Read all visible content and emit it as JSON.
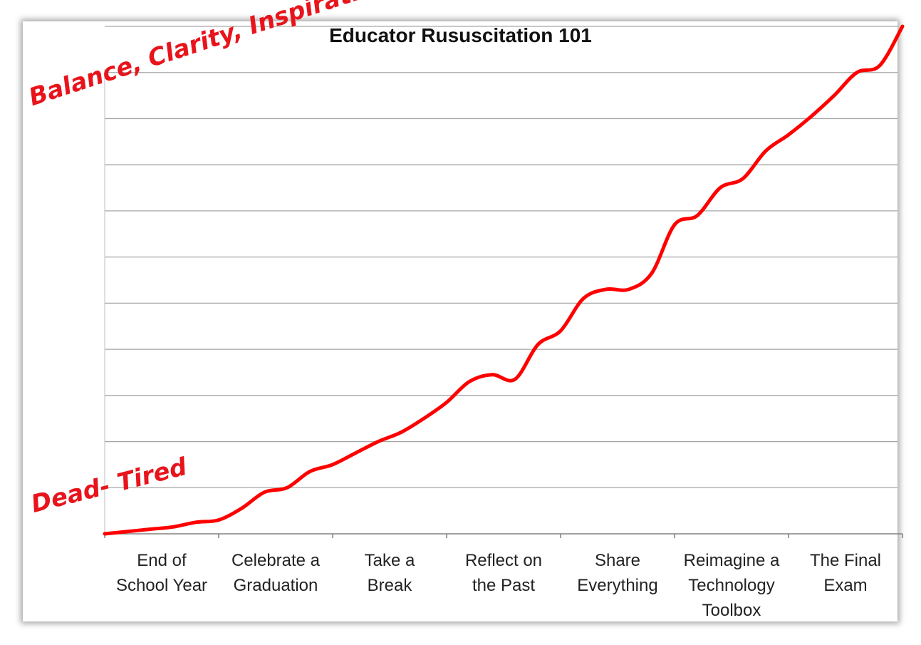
{
  "chart_data": {
    "type": "line",
    "title": "Educator Rususcitation 101",
    "categories": [
      "End of\nSchool Year",
      "Celebrate a\nGraduation",
      "Take a\nBreak",
      "Reflect on\nthe Past",
      "Share\nEverything",
      "Reimagine a\nTechnology\nToolbox",
      "The Final\nExam"
    ],
    "ylim": [
      0,
      11
    ],
    "grid": true,
    "series": [
      {
        "color": "#ff0000",
        "x": [
          0,
          0.2,
          0.4,
          0.6,
          0.8,
          1.0,
          1.2,
          1.4,
          1.6,
          1.8,
          2.0,
          2.2,
          2.4,
          2.6,
          2.8,
          3.0,
          3.2,
          3.4,
          3.6,
          3.8,
          4.0,
          4.2,
          4.4,
          4.6,
          4.8,
          5.0,
          5.2,
          5.4,
          5.6,
          5.8,
          6.0,
          6.2,
          6.4,
          6.6,
          6.8,
          7.0
        ],
        "y": [
          0,
          0.05,
          0.1,
          0.15,
          0.25,
          0.3,
          0.55,
          0.9,
          1.0,
          1.35,
          1.5,
          1.75,
          2.0,
          2.2,
          2.5,
          2.85,
          3.3,
          3.45,
          3.35,
          4.1,
          4.4,
          5.1,
          5.3,
          5.3,
          5.65,
          6.7,
          6.9,
          7.5,
          7.7,
          8.3,
          8.65,
          9.05,
          9.5,
          10.0,
          10.15,
          11.0
        ]
      }
    ]
  },
  "annotations": {
    "top": "Balance,\nClarity,\nInspiration",
    "bottom": "Dead-\nTired"
  }
}
